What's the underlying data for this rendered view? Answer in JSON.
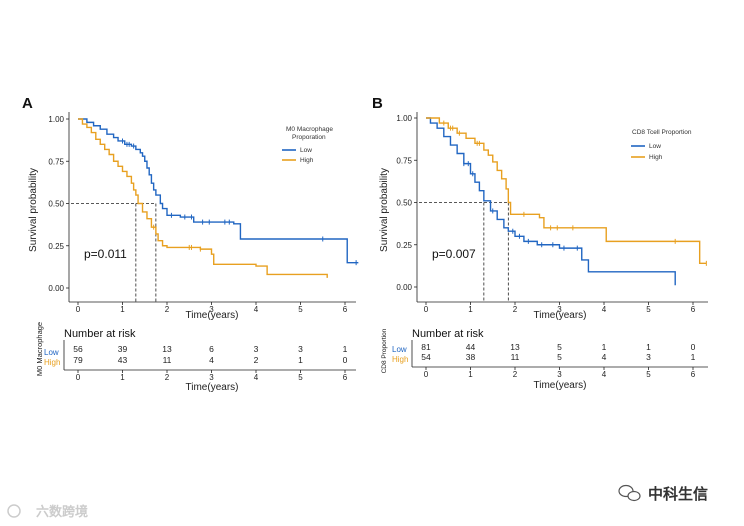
{
  "watermark_left": "六数跨境",
  "watermark_right": "中科生信",
  "colors": {
    "low": "#2166c2",
    "high": "#e8a020"
  },
  "chart_data": [
    {
      "panel": "A",
      "type": "line",
      "subtype": "kaplan-meier",
      "xlabel": "Time(years)",
      "ylabel": "Survival probability",
      "xlim": [
        0,
        6
      ],
      "ylim": [
        0,
        1
      ],
      "xticks": [
        "0",
        "1",
        "2",
        "3",
        "4",
        "5",
        "6"
      ],
      "yticks": [
        "0.00",
        "0.25",
        "0.50",
        "0.75",
        "1.00"
      ],
      "pvalue": "p=0.011",
      "legend_title": "M0 Macrophage\nProporation",
      "legend_position": "top-right",
      "median_lines": [
        1.3,
        1.75
      ],
      "series": [
        {
          "name": "Low",
          "steps": [
            [
              0,
              1.0
            ],
            [
              0.2,
              0.98
            ],
            [
              0.35,
              0.96
            ],
            [
              0.5,
              0.94
            ],
            [
              0.65,
              0.91
            ],
            [
              0.8,
              0.89
            ],
            [
              0.9,
              0.87
            ],
            [
              1.05,
              0.85
            ],
            [
              1.2,
              0.84
            ],
            [
              1.3,
              0.82
            ],
            [
              1.4,
              0.8
            ],
            [
              1.45,
              0.78
            ],
            [
              1.5,
              0.75
            ],
            [
              1.55,
              0.71
            ],
            [
              1.6,
              0.67
            ],
            [
              1.65,
              0.62
            ],
            [
              1.7,
              0.58
            ],
            [
              1.75,
              0.55
            ],
            [
              1.85,
              0.5
            ],
            [
              1.9,
              0.47
            ],
            [
              2.0,
              0.43
            ],
            [
              2.3,
              0.42
            ],
            [
              2.6,
              0.39
            ],
            [
              3.0,
              0.39
            ],
            [
              3.5,
              0.38
            ],
            [
              3.65,
              0.29
            ],
            [
              5.6,
              0.29
            ],
            [
              6.0,
              0.29
            ],
            [
              6.05,
              0.15
            ],
            [
              6.3,
              0.15
            ]
          ],
          "censor": [
            1.0,
            1.1,
            1.15,
            1.25,
            2.1,
            2.4,
            2.55,
            2.8,
            2.95,
            3.3,
            3.4,
            5.5,
            6.25
          ]
        },
        {
          "name": "High",
          "steps": [
            [
              0,
              1.0
            ],
            [
              0.1,
              0.97
            ],
            [
              0.2,
              0.95
            ],
            [
              0.3,
              0.92
            ],
            [
              0.4,
              0.88
            ],
            [
              0.5,
              0.85
            ],
            [
              0.6,
              0.82
            ],
            [
              0.7,
              0.79
            ],
            [
              0.8,
              0.75
            ],
            [
              0.9,
              0.72
            ],
            [
              1.0,
              0.69
            ],
            [
              1.1,
              0.66
            ],
            [
              1.2,
              0.62
            ],
            [
              1.25,
              0.58
            ],
            [
              1.3,
              0.55
            ],
            [
              1.35,
              0.5
            ],
            [
              1.45,
              0.45
            ],
            [
              1.55,
              0.41
            ],
            [
              1.65,
              0.36
            ],
            [
              1.75,
              0.32
            ],
            [
              1.8,
              0.28
            ],
            [
              1.9,
              0.25
            ],
            [
              2.0,
              0.24
            ],
            [
              2.75,
              0.23
            ],
            [
              3.0,
              0.2
            ],
            [
              3.05,
              0.14
            ],
            [
              4.0,
              0.13
            ],
            [
              4.25,
              0.08
            ],
            [
              5.6,
              0.06
            ]
          ],
          "censor": [
            1.7,
            2.5,
            2.55,
            2.75
          ]
        }
      ],
      "risk_table": {
        "title": "Number at risk",
        "side_label": "M0 Macrophage",
        "rows": [
          {
            "label": "Low",
            "values": [
              "56",
              "39",
              "13",
              "6",
              "3",
              "3",
              "1"
            ]
          },
          {
            "label": "High",
            "values": [
              "79",
              "43",
              "11",
              "4",
              "2",
              "1",
              "0"
            ]
          }
        ]
      }
    },
    {
      "panel": "B",
      "type": "line",
      "subtype": "kaplan-meier",
      "xlabel": "Time(years)",
      "ylabel": "Survival probability",
      "xlim": [
        0,
        6
      ],
      "ylim": [
        0,
        1
      ],
      "xticks": [
        "0",
        "1",
        "2",
        "3",
        "4",
        "5",
        "6"
      ],
      "yticks": [
        "0.00",
        "0.25",
        "0.50",
        "0.75",
        "1.00"
      ],
      "pvalue": "p=0.007",
      "legend_title": "CD8 Tcell Proportion",
      "legend_position": "top-right",
      "median_lines": [
        1.3,
        1.85
      ],
      "series": [
        {
          "name": "Low",
          "steps": [
            [
              0,
              1.0
            ],
            [
              0.1,
              0.97
            ],
            [
              0.25,
              0.94
            ],
            [
              0.4,
              0.89
            ],
            [
              0.55,
              0.84
            ],
            [
              0.7,
              0.79
            ],
            [
              0.85,
              0.73
            ],
            [
              1.0,
              0.67
            ],
            [
              1.1,
              0.62
            ],
            [
              1.2,
              0.57
            ],
            [
              1.3,
              0.51
            ],
            [
              1.45,
              0.45
            ],
            [
              1.6,
              0.4
            ],
            [
              1.75,
              0.35
            ],
            [
              1.85,
              0.33
            ],
            [
              2.0,
              0.3
            ],
            [
              2.2,
              0.27
            ],
            [
              2.5,
              0.25
            ],
            [
              3.0,
              0.23
            ],
            [
              3.5,
              0.16
            ],
            [
              3.65,
              0.09
            ],
            [
              5.55,
              0.09
            ],
            [
              5.6,
              0.01
            ]
          ],
          "censor": [
            0.85,
            0.95,
            1.05,
            1.5,
            1.95,
            2.1,
            2.3,
            2.6,
            2.85,
            3.1,
            3.4
          ]
        },
        {
          "name": "High",
          "steps": [
            [
              0,
              1.0
            ],
            [
              0.3,
              0.97
            ],
            [
              0.5,
              0.94
            ],
            [
              0.7,
              0.91
            ],
            [
              0.9,
              0.88
            ],
            [
              1.1,
              0.85
            ],
            [
              1.3,
              0.81
            ],
            [
              1.4,
              0.78
            ],
            [
              1.5,
              0.74
            ],
            [
              1.6,
              0.69
            ],
            [
              1.7,
              0.64
            ],
            [
              1.8,
              0.58
            ],
            [
              1.85,
              0.5
            ],
            [
              1.9,
              0.43
            ],
            [
              2.4,
              0.43
            ],
            [
              2.55,
              0.41
            ],
            [
              2.65,
              0.35
            ],
            [
              3.5,
              0.35
            ],
            [
              4.05,
              0.27
            ],
            [
              5.7,
              0.27
            ],
            [
              6.0,
              0.27
            ],
            [
              6.15,
              0.14
            ],
            [
              6.3,
              0.14
            ]
          ],
          "censor": [
            0.4,
            0.55,
            0.6,
            0.75,
            1.15,
            1.2,
            2.2,
            2.8,
            2.95,
            3.3,
            5.6,
            6.3
          ]
        }
      ],
      "risk_table": {
        "title": "Number at risk",
        "side_label": "CD8 Proportion",
        "rows": [
          {
            "label": "Low",
            "values": [
              "81",
              "44",
              "13",
              "5",
              "1",
              "1",
              "0"
            ]
          },
          {
            "label": "High",
            "values": [
              "54",
              "38",
              "11",
              "5",
              "4",
              "3",
              "1"
            ]
          }
        ]
      }
    }
  ]
}
